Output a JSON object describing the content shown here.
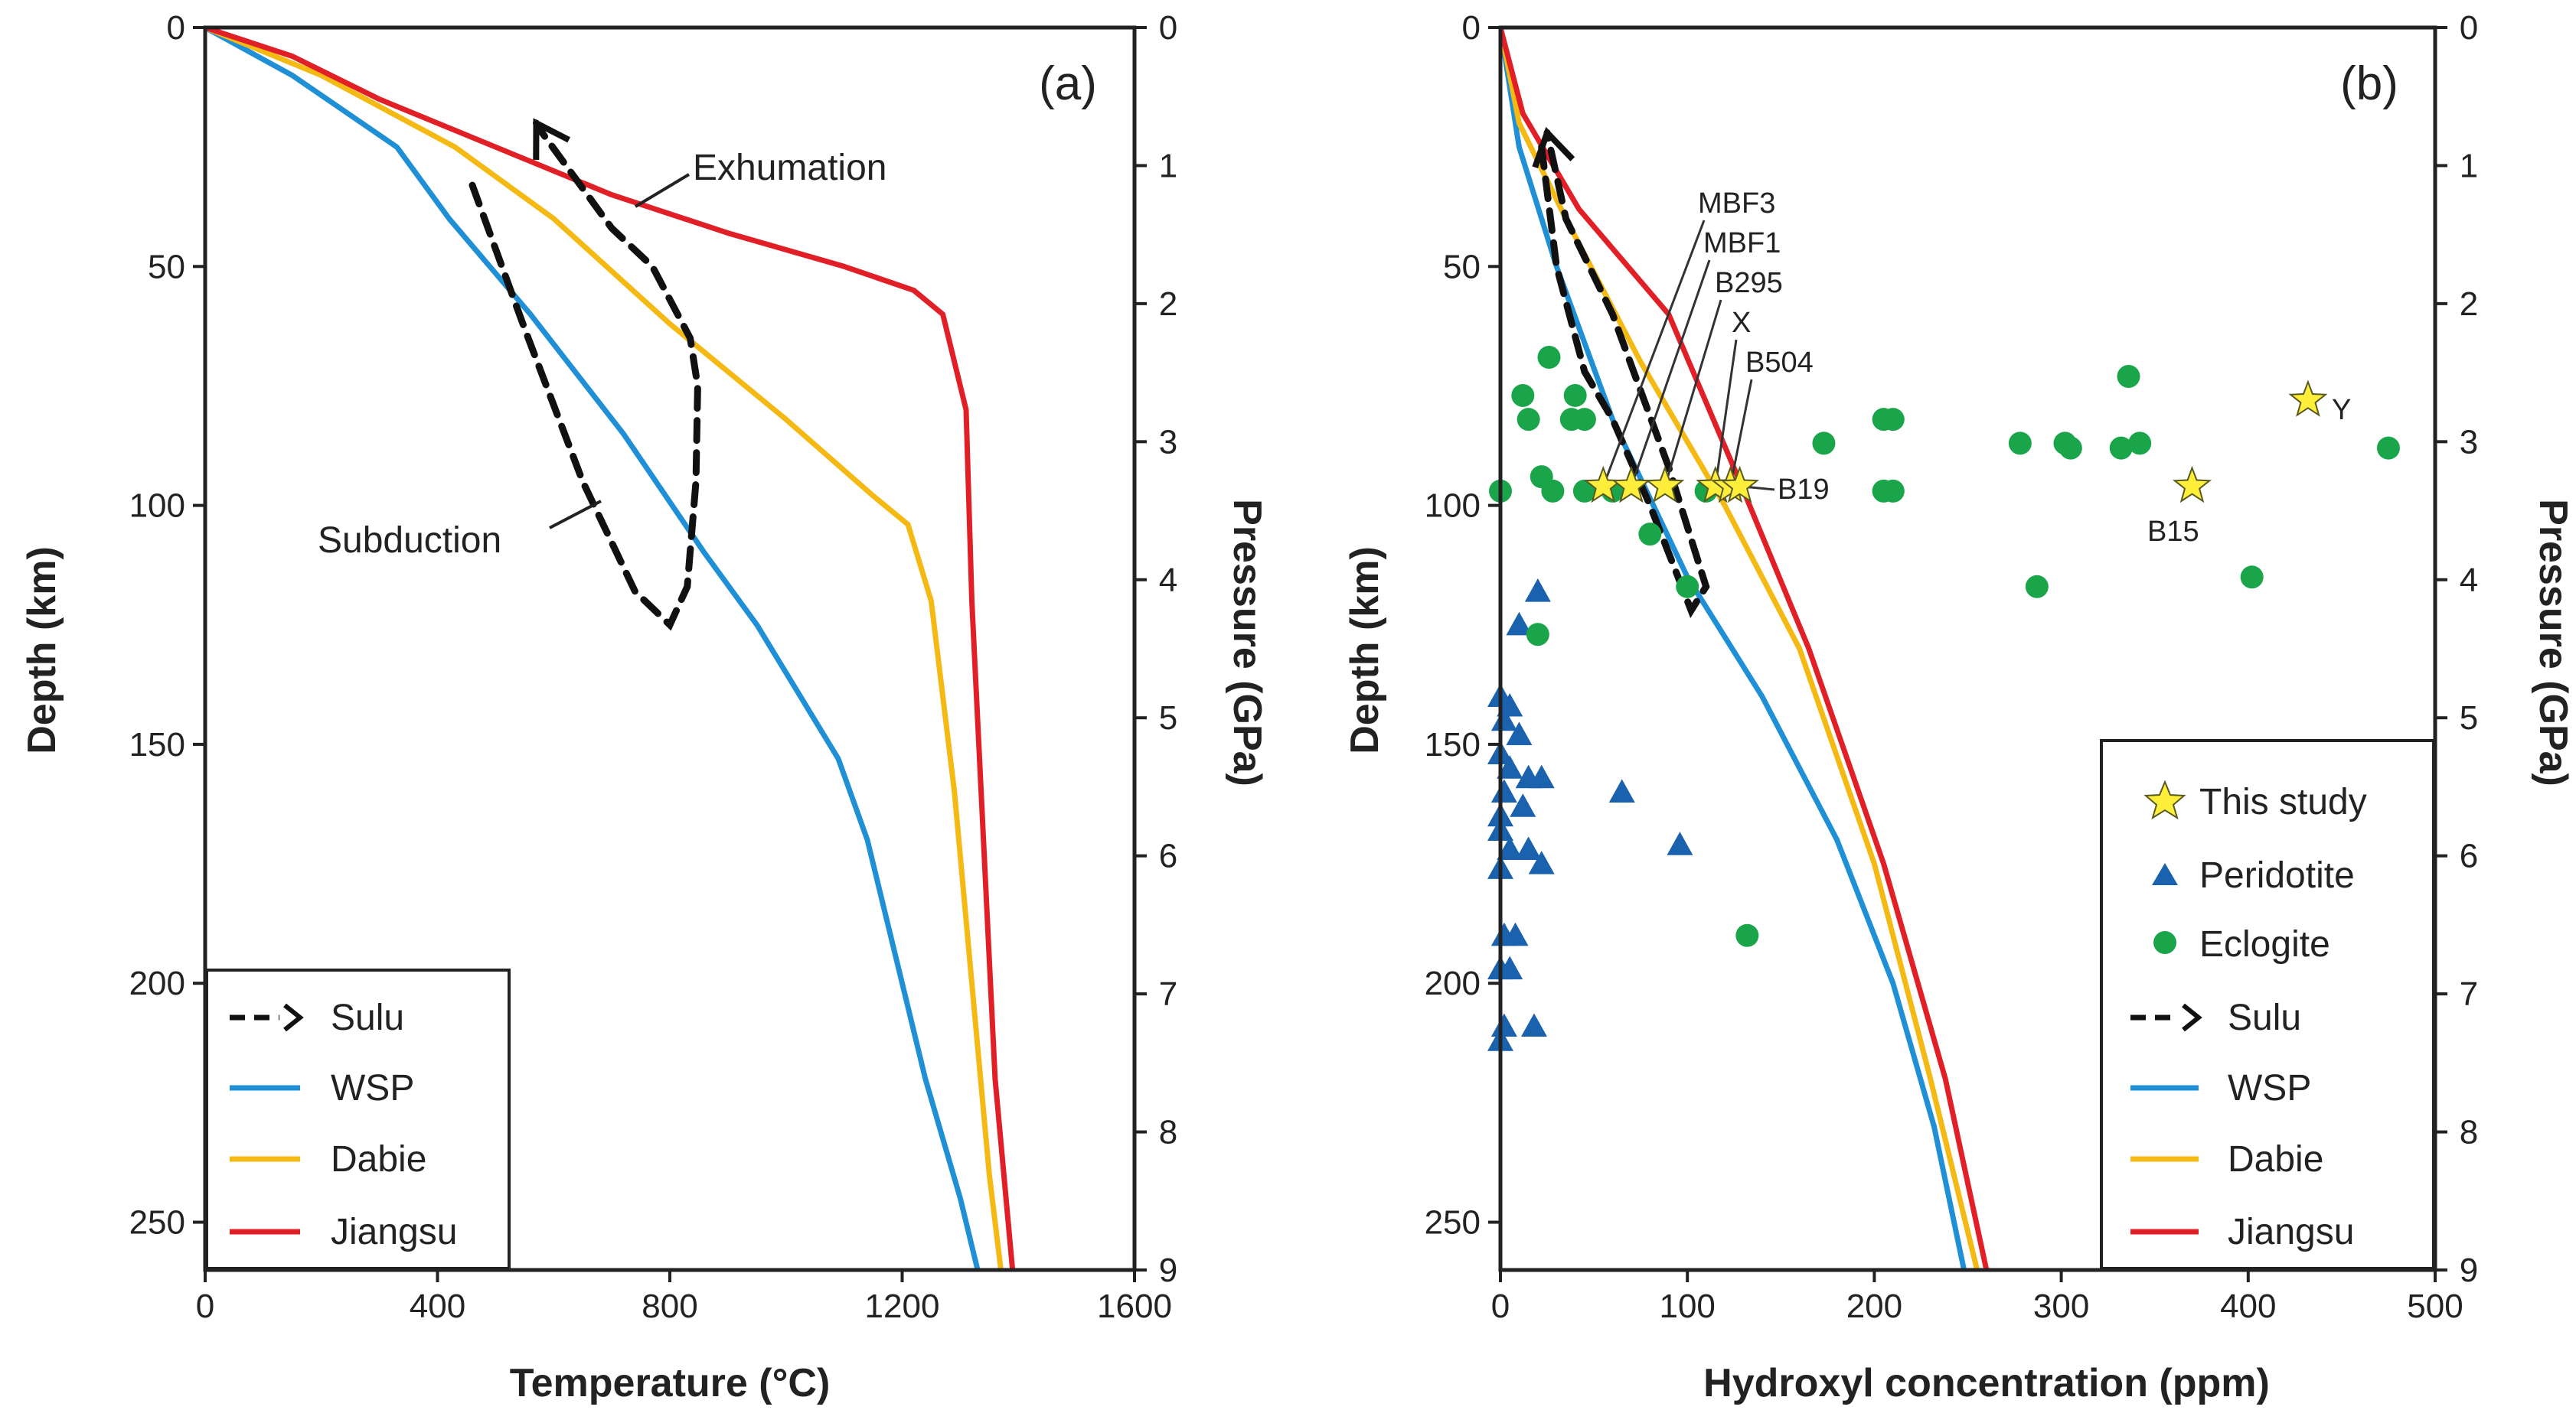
{
  "chart_data": [
    {
      "type": "line",
      "panel_label": "(a)",
      "xlabel": "Temperature (°C)",
      "ylabel": "Depth (km)",
      "y2label": "Pressure (GPa)",
      "xlim": [
        0,
        1600
      ],
      "ylim": [
        0,
        260
      ],
      "y2lim": [
        0,
        9
      ],
      "xticks": [
        "0",
        "400",
        "800",
        "1200",
        "1600"
      ],
      "yticks": [
        "0",
        "50",
        "100",
        "150",
        "200",
        "250"
      ],
      "y2ticks": [
        "0",
        "1",
        "2",
        "3",
        "4",
        "5",
        "6",
        "7",
        "8",
        "9"
      ],
      "series": [
        {
          "name": "WSP",
          "color": "#1f8fd6",
          "points": [
            [
              0,
              0
            ],
            [
              150,
              10
            ],
            [
              330,
              25
            ],
            [
              420,
              40
            ],
            [
              560,
              60
            ],
            [
              720,
              85
            ],
            [
              860,
              110
            ],
            [
              950,
              125
            ],
            [
              1090,
              153
            ],
            [
              1140,
              170
            ],
            [
              1200,
              200
            ],
            [
              1240,
              220
            ],
            [
              1300,
              245
            ],
            [
              1330,
              260
            ]
          ]
        },
        {
          "name": "Dabie",
          "color": "#f5b914",
          "points": [
            [
              0,
              0
            ],
            [
              200,
              10
            ],
            [
              430,
              25
            ],
            [
              600,
              40
            ],
            [
              800,
              62
            ],
            [
              1000,
              82
            ],
            [
              1150,
              98
            ],
            [
              1210,
              104
            ],
            [
              1250,
              120
            ],
            [
              1290,
              160
            ],
            [
              1320,
              200
            ],
            [
              1350,
              240
            ],
            [
              1370,
              260
            ]
          ]
        },
        {
          "name": "Jiangsu",
          "color": "#e11f26",
          "points": [
            [
              0,
              0
            ],
            [
              150,
              6
            ],
            [
              300,
              15
            ],
            [
              500,
              25
            ],
            [
              700,
              35
            ],
            [
              900,
              43
            ],
            [
              1100,
              50
            ],
            [
              1220,
              55
            ],
            [
              1270,
              60
            ],
            [
              1310,
              80
            ],
            [
              1320,
              120
            ],
            [
              1340,
              170
            ],
            [
              1360,
              220
            ],
            [
              1390,
              260
            ]
          ]
        }
      ],
      "sulu_path": {
        "name": "Sulu",
        "points": [
          [
            460,
            33
          ],
          [
            550,
            63
          ],
          [
            650,
            95
          ],
          [
            740,
            118
          ],
          [
            800,
            125
          ],
          [
            830,
            117
          ],
          [
            845,
            95
          ],
          [
            848,
            75
          ],
          [
            835,
            65
          ],
          [
            770,
            50
          ],
          [
            700,
            42
          ],
          [
            580,
            22
          ],
          [
            570,
            20
          ]
        ]
      },
      "annotations": [
        {
          "text": "Exhumation",
          "x": 840,
          "y": 30
        },
        {
          "text": "Subduction",
          "x": 390,
          "y": 107
        }
      ],
      "legend": [
        "Sulu",
        "WSP",
        "Dabie",
        "Jiangsu"
      ],
      "legend_position": "lower-left"
    },
    {
      "type": "scatter",
      "panel_label": "(b)",
      "xlabel": "Hydroxyl  concentration (ppm)",
      "ylabel": "Depth (km)",
      "y2label": "Pressure (GPa)",
      "xlim": [
        0,
        500
      ],
      "ylim": [
        0,
        260
      ],
      "y2lim": [
        0,
        9
      ],
      "xticks": [
        "0",
        "100",
        "200",
        "300",
        "400",
        "500"
      ],
      "yticks": [
        "0",
        "50",
        "100",
        "150",
        "200",
        "250"
      ],
      "y2ticks": [
        "0",
        "1",
        "2",
        "3",
        "4",
        "5",
        "6",
        "7",
        "8",
        "9"
      ],
      "series": [
        {
          "name": "WSP",
          "color": "#1f8fd6",
          "points": [
            [
              0,
              0
            ],
            [
              10,
              25
            ],
            [
              30,
              50
            ],
            [
              60,
              82
            ],
            [
              100,
              115
            ],
            [
              140,
              140
            ],
            [
              180,
              170
            ],
            [
              210,
              200
            ],
            [
              232,
              230
            ],
            [
              248,
              260
            ]
          ]
        },
        {
          "name": "Dabie",
          "color": "#f5b914",
          "points": [
            [
              0,
              0
            ],
            [
              10,
              20
            ],
            [
              35,
              40
            ],
            [
              75,
              70
            ],
            [
              120,
              100
            ],
            [
              160,
              130
            ],
            [
              200,
              175
            ],
            [
              230,
              220
            ],
            [
              255,
              260
            ]
          ]
        },
        {
          "name": "Jiangsu",
          "color": "#e11f26",
          "points": [
            [
              0,
              0
            ],
            [
              12,
              18
            ],
            [
              42,
              38
            ],
            [
              90,
              60
            ],
            [
              128,
              95
            ],
            [
              165,
              130
            ],
            [
              205,
              175
            ],
            [
              238,
              220
            ],
            [
              260,
              260
            ]
          ]
        }
      ],
      "sulu_path": {
        "name": "Sulu",
        "points": [
          [
            22,
            25
          ],
          [
            30,
            50
          ],
          [
            45,
            72
          ],
          [
            60,
            82
          ],
          [
            80,
            100
          ],
          [
            102,
            122
          ],
          [
            110,
            117
          ],
          [
            90,
            92
          ],
          [
            60,
            60
          ],
          [
            35,
            40
          ],
          [
            25,
            22
          ]
        ]
      },
      "this_study": [
        {
          "label": "MBF3",
          "x": 55,
          "y": 96
        },
        {
          "label": "MBF1",
          "x": 70,
          "y": 96
        },
        {
          "label": "B295",
          "x": 88,
          "y": 96
        },
        {
          "label": "X",
          "x": 115,
          "y": 96
        },
        {
          "label": "B504",
          "x": 123,
          "y": 96
        },
        {
          "label": "B19",
          "x": 128,
          "y": 96
        },
        {
          "label": "Y",
          "x": 432,
          "y": 78
        },
        {
          "label": "B15",
          "x": 370,
          "y": 96
        }
      ],
      "peridotite": [
        [
          20,
          118
        ],
        [
          10,
          125
        ],
        [
          0,
          140
        ],
        [
          5,
          142
        ],
        [
          2,
          145
        ],
        [
          10,
          148
        ],
        [
          0,
          152
        ],
        [
          5,
          155
        ],
        [
          15,
          157
        ],
        [
          22,
          157
        ],
        [
          2,
          160
        ],
        [
          0,
          165
        ],
        [
          12,
          163
        ],
        [
          0,
          168
        ],
        [
          5,
          172
        ],
        [
          15,
          172
        ],
        [
          22,
          175
        ],
        [
          0,
          176
        ],
        [
          65,
          160
        ],
        [
          96,
          171
        ],
        [
          2,
          190
        ],
        [
          8,
          190
        ],
        [
          0,
          197
        ],
        [
          5,
          197
        ],
        [
          2,
          209
        ],
        [
          18,
          209
        ],
        [
          0,
          212
        ]
      ],
      "eclogite": [
        [
          26,
          69
        ],
        [
          12,
          77
        ],
        [
          40,
          77
        ],
        [
          15,
          82
        ],
        [
          38,
          82
        ],
        [
          45,
          82
        ],
        [
          205,
          82
        ],
        [
          210,
          82
        ],
        [
          336,
          73
        ],
        [
          173,
          87
        ],
        [
          278,
          87
        ],
        [
          302,
          87
        ],
        [
          305,
          88
        ],
        [
          332,
          88
        ],
        [
          342,
          87
        ],
        [
          475,
          88
        ],
        [
          22,
          94
        ],
        [
          0,
          97
        ],
        [
          28,
          97
        ],
        [
          45,
          97
        ],
        [
          60,
          97
        ],
        [
          110,
          97
        ],
        [
          205,
          97
        ],
        [
          210,
          97
        ],
        [
          80,
          106
        ],
        [
          20,
          127
        ],
        [
          100,
          117
        ],
        [
          287,
          117
        ],
        [
          402,
          115
        ],
        [
          132,
          190
        ]
      ],
      "annotations": [
        {
          "text": "MBF3"
        },
        {
          "text": "MBF1"
        },
        {
          "text": "B295"
        },
        {
          "text": "X"
        },
        {
          "text": "B504"
        },
        {
          "text": "B19"
        },
        {
          "text": "B15"
        },
        {
          "text": "Y"
        }
      ],
      "legend": [
        "This study",
        "Peridotite",
        "Eclogite",
        "Sulu",
        "WSP",
        "Dabie",
        "Jiangsu"
      ],
      "legend_position": "lower-right"
    }
  ]
}
